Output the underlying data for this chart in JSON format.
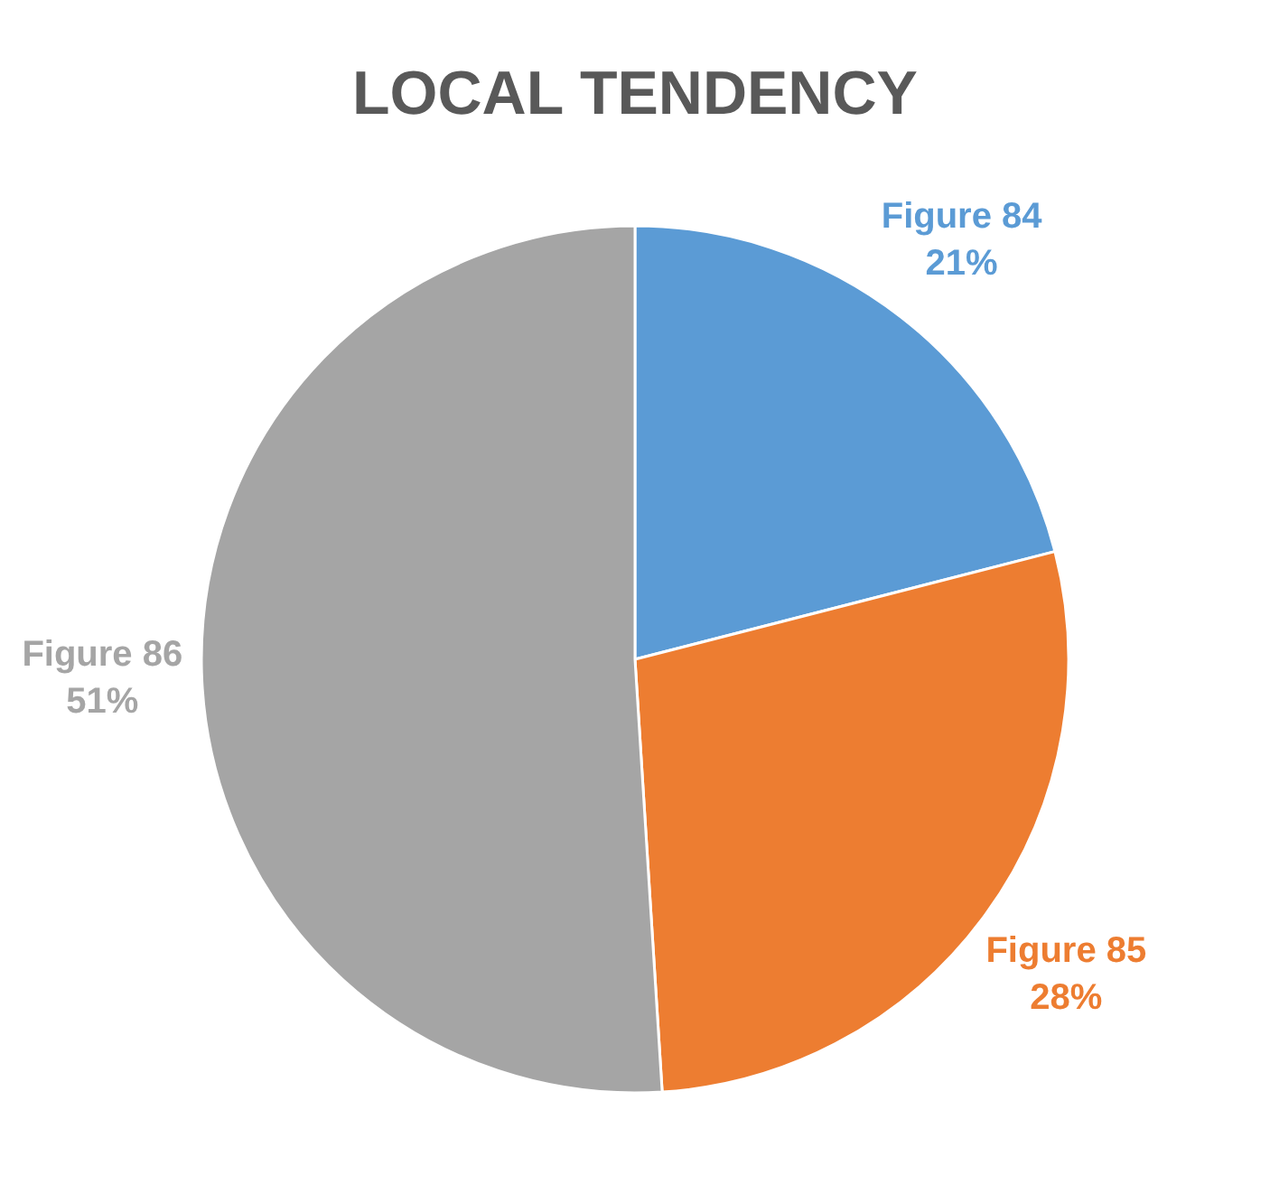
{
  "chart_data": {
    "type": "pie",
    "title": "LOCAL TENDENCY",
    "categories": [
      "Figure 84",
      "Figure 85",
      "Figure 86"
    ],
    "values": [
      21,
      28,
      51
    ],
    "colors": [
      "#5b9bd5",
      "#ed7d31",
      "#a5a5a5"
    ],
    "value_labels": [
      "21%",
      "28%",
      "51%"
    ],
    "legend": false
  }
}
